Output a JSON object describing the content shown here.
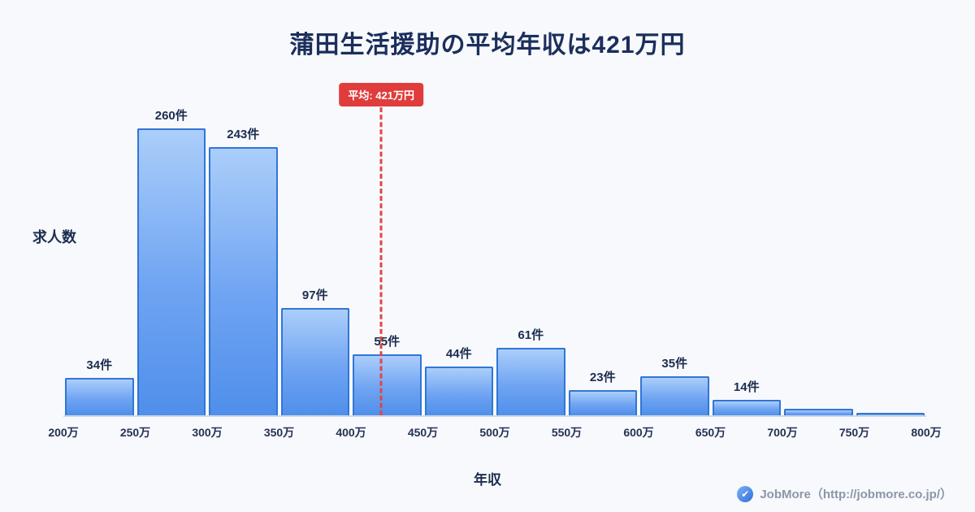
{
  "title": "蒲田生活援助の平均年収は421万円",
  "average_label": "平均: 421万円",
  "ylabel": "求人数",
  "xlabel": "年収",
  "footer": {
    "brand": "JobMore（http://jobmore.co.jp/）",
    "logo_mark": "✔"
  },
  "chart_data": {
    "type": "bar",
    "title": "蒲田生活援助の平均年収は421万円",
    "categories": [
      "200万",
      "250万",
      "300万",
      "350万",
      "400万",
      "450万",
      "500万",
      "550万",
      "600万",
      "650万",
      "700万",
      "750万",
      "800万"
    ],
    "values": [
      34,
      260,
      243,
      97,
      55,
      44,
      61,
      23,
      35,
      14,
      6,
      2
    ],
    "bar_labels": [
      "34件",
      "260件",
      "243件",
      "97件",
      "55件",
      "44件",
      "61件",
      "23件",
      "35件",
      "14件",
      "",
      ""
    ],
    "average_value": 421,
    "x_range": [
      200,
      800
    ],
    "ylim": [
      0,
      270
    ],
    "xlabel": "年収",
    "ylabel": "求人数",
    "grid": false,
    "legend": "none",
    "colors": {
      "bar_top": "#abcefa",
      "bar_bottom": "#4f8fea",
      "bar_border": "#3276d6",
      "average_line": "#e04545",
      "average_badge_bg": "#e03c3c",
      "title_text": "#1b2e5c",
      "background": "#f7f9fc"
    }
  }
}
